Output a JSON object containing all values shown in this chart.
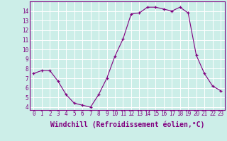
{
  "x": [
    0,
    1,
    2,
    3,
    4,
    5,
    6,
    7,
    8,
    9,
    10,
    11,
    12,
    13,
    14,
    15,
    16,
    17,
    18,
    19,
    20,
    21,
    22,
    23
  ],
  "y": [
    7.5,
    7.8,
    7.8,
    6.7,
    5.3,
    4.4,
    4.2,
    4.0,
    5.3,
    7.0,
    9.3,
    11.1,
    13.7,
    13.8,
    14.4,
    14.4,
    14.2,
    14.0,
    14.4,
    13.8,
    9.4,
    7.5,
    6.2,
    5.7
  ],
  "line_color": "#800080",
  "marker": "+",
  "bg_color": "#cceee8",
  "grid_color": "#ffffff",
  "xlabel": "Windchill (Refroidissement éolien,°C)",
  "xlim": [
    -0.5,
    23.5
  ],
  "ylim": [
    3.7,
    15.0
  ],
  "yticks": [
    4,
    5,
    6,
    7,
    8,
    9,
    10,
    11,
    12,
    13,
    14
  ],
  "xticks": [
    0,
    1,
    2,
    3,
    4,
    5,
    6,
    7,
    8,
    9,
    10,
    11,
    12,
    13,
    14,
    15,
    16,
    17,
    18,
    19,
    20,
    21,
    22,
    23
  ],
  "tick_label_fontsize": 5.5,
  "xlabel_fontsize": 7.0,
  "axis_label_color": "#800080",
  "tick_color": "#800080",
  "spine_color": "#800080"
}
